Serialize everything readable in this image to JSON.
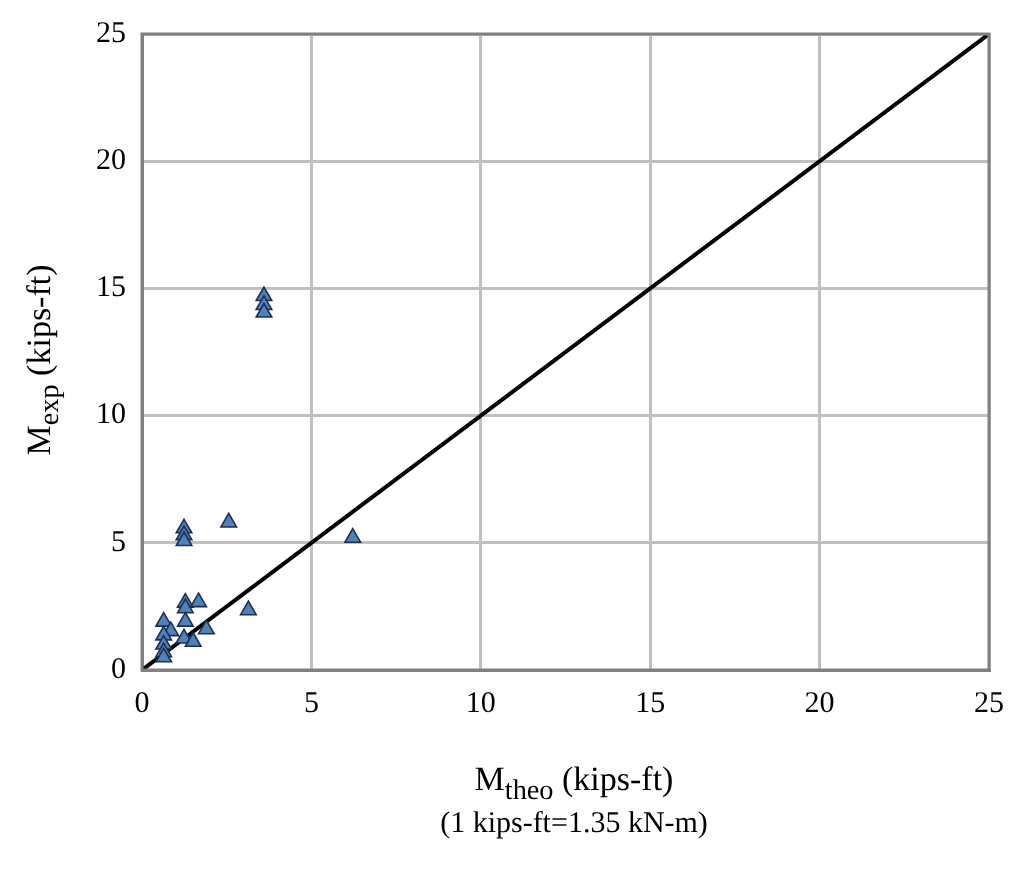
{
  "chart_data": {
    "type": "scatter",
    "xlabel": "M$_{theo}$ (kips-ft)",
    "ylabel": "M$_{exp}$ (kips-ft)",
    "annotations": [
      "(1 kips-ft=1.35 kN-m)"
    ],
    "xlim": [
      0,
      25
    ],
    "ylim": [
      0,
      25
    ],
    "xticks": [
      0,
      5,
      10,
      15,
      20,
      25
    ],
    "yticks": [
      0,
      5,
      10,
      15,
      20,
      25
    ],
    "grid": true,
    "marker": "triangle",
    "series": [
      {
        "color": "#4f81bd",
        "x": [
          1.24,
          1.24,
          1.24,
          2.56,
          6.22,
          1.28,
          1.28,
          1.67,
          3.14,
          0.64,
          1.28,
          0.85,
          0.64,
          1.9,
          1.24,
          1.51,
          0.64,
          0.64,
          0.64,
          3.6,
          3.6,
          3.6
        ],
        "values": [
          5.57,
          5.3,
          5.07,
          5.8,
          5.2,
          2.65,
          2.43,
          2.67,
          2.35,
          1.9,
          1.9,
          1.53,
          1.36,
          1.6,
          1.24,
          1.11,
          1.0,
          0.7,
          0.5,
          14.7,
          14.35,
          14.05
        ]
      },
      {
        "type": "line",
        "color": "#000000",
        "x": [
          0,
          25
        ],
        "values": [
          0,
          25
        ],
        "marker": "none"
      }
    ]
  }
}
